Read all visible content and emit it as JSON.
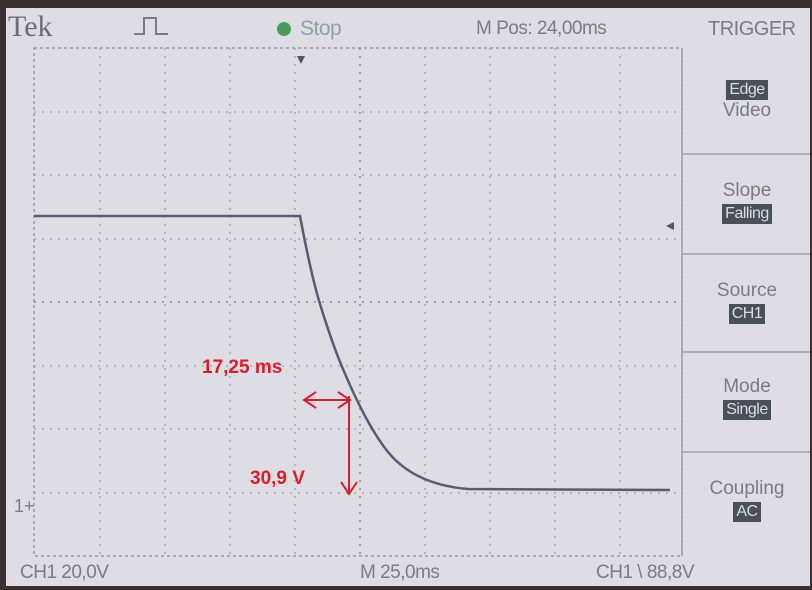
{
  "header": {
    "brand": "Tek",
    "run_state": "Stop",
    "main_position": "M Pos: 24,00ms",
    "menu_title": "TRIGGER"
  },
  "trigger_menu": [
    {
      "label": "",
      "value": "Edge",
      "value2": "Video"
    },
    {
      "label": "Slope",
      "value": "Falling"
    },
    {
      "label": "Source",
      "value": "CH1"
    },
    {
      "label": "Mode",
      "value": "Single"
    },
    {
      "label": "Coupling",
      "value": "AC"
    }
  ],
  "footer": {
    "ch1_scale": "CH1  20,0V",
    "time_scale": "M 25,0ms",
    "trigger_readout": "CH1 \\ 88,8V"
  },
  "channel_marker": "1+",
  "annotations": {
    "time": "17,25 ms",
    "voltage": "30,9 V"
  },
  "colors": {
    "screen": "#dedde4",
    "trace": "#5a5a70",
    "annotation": "#d81e2c",
    "run_indicator": "#4a9a5a"
  },
  "icons": {
    "trigger_glyph": "pulse-icon",
    "trigger_position": "arrow-down-icon",
    "trigger_level": "arrow-left-icon"
  }
}
